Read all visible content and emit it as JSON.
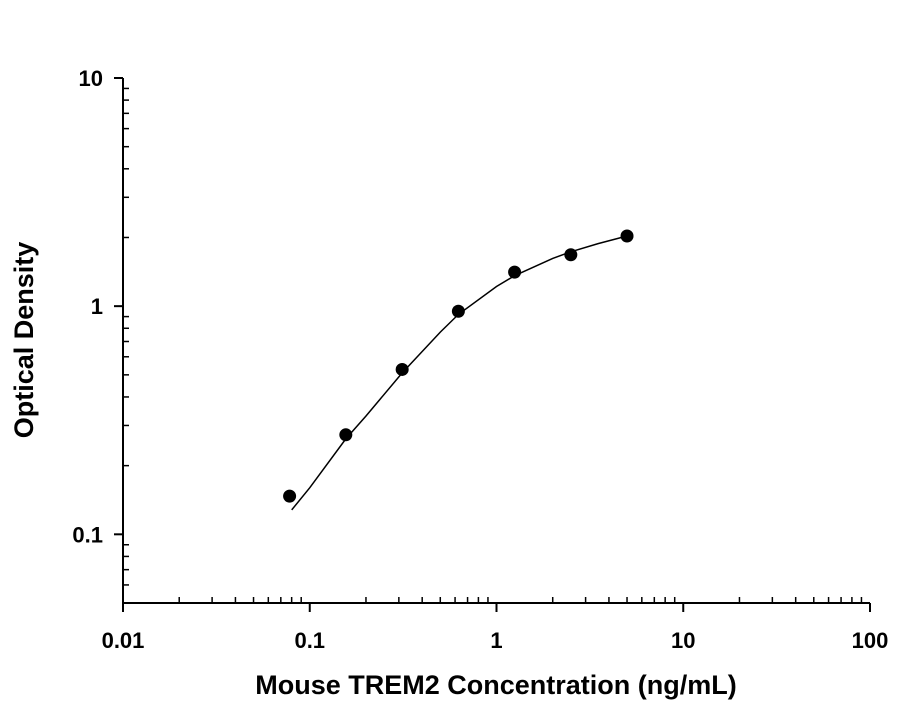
{
  "chart_data": {
    "type": "scatter",
    "xlabel": "Mouse TREM2 Concentration (ng/mL)",
    "ylabel": "Optical Density",
    "xscale": "log",
    "yscale": "log",
    "xlim": [
      0.01,
      100
    ],
    "xticks": [
      0.01,
      0.1,
      1,
      10,
      100
    ],
    "ylim": [
      0.05,
      10
    ],
    "yticks": [
      0.1,
      1,
      10
    ],
    "minor_ticks": true,
    "series": [
      {
        "type": "scatter",
        "color": "#000000",
        "x": [
          0.078,
          0.156,
          0.3125,
          0.625,
          1.25,
          2.5,
          5
        ],
        "values": [
          0.147,
          0.273,
          0.528,
          0.95,
          1.41,
          1.68,
          2.03
        ]
      },
      {
        "type": "line",
        "color": "#000000",
        "x": [
          0.08,
          0.1,
          0.156,
          0.2,
          0.3125,
          0.5,
          0.625,
          1,
          1.25,
          2,
          2.5,
          3.5,
          5
        ],
        "values": [
          0.128,
          0.16,
          0.262,
          0.33,
          0.51,
          0.77,
          0.92,
          1.22,
          1.36,
          1.62,
          1.73,
          1.88,
          2.03
        ]
      }
    ]
  }
}
